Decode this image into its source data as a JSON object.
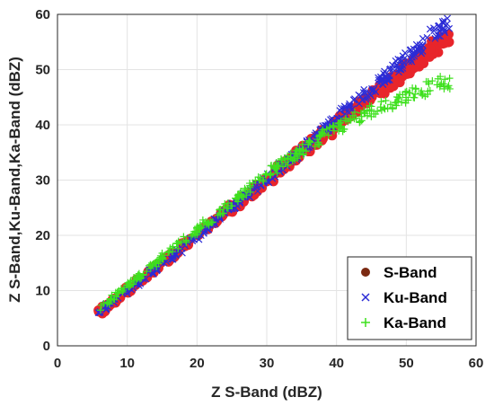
{
  "chart_data": {
    "type": "scatter",
    "xlabel": "Z S-Band (dBZ)",
    "ylabel": "Z S-Band,Ku-Band,Ka-Band (dBZ)",
    "xlim": [
      0,
      60
    ],
    "ylim": [
      0,
      60
    ],
    "xticks": [
      "0",
      "10",
      "20",
      "30",
      "40",
      "50",
      "60"
    ],
    "yticks": [
      "0",
      "10",
      "20",
      "30",
      "40",
      "50",
      "60"
    ],
    "grid": true,
    "legend_position": "bottom-right",
    "series": [
      {
        "name": "S-Band",
        "marker": "dot",
        "color": "#e8252b",
        "legend_color": "#7b2a12",
        "x": [
          6,
          10,
          15,
          20,
          25,
          30,
          35,
          40,
          45,
          50,
          55,
          56.5
        ],
        "y": [
          6,
          10,
          15,
          20,
          25,
          30,
          35,
          40,
          45,
          50,
          55,
          56.5
        ]
      },
      {
        "name": "Ku-Band",
        "marker": "x",
        "color": "#2b2bd6",
        "legend_color": "#2b2bd6",
        "x": [
          6,
          10,
          15,
          20,
          25,
          30,
          35,
          40,
          45,
          50,
          55,
          56.5
        ],
        "y": [
          6,
          10,
          14.9,
          19.9,
          25,
          30.2,
          35.5,
          41,
          46.5,
          52,
          57.5,
          58.5
        ]
      },
      {
        "name": "Ka-Band",
        "marker": "plus",
        "color": "#3ee01e",
        "legend_color": "#3ee01e",
        "x": [
          6,
          10,
          15,
          20,
          25,
          30,
          35,
          38,
          40,
          45,
          50,
          55,
          56.5
        ],
        "y": [
          6.5,
          11,
          16,
          21,
          26,
          31,
          35.5,
          38,
          39.5,
          42.5,
          45,
          47.5,
          48
        ]
      }
    ]
  }
}
